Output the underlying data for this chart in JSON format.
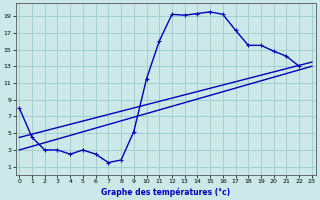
{
  "xlabel": "Graphe des températures (°c)",
  "bg_color": "#cce8e8",
  "grid_color": "#99cccc",
  "line_color": "#0000bb",
  "xlim": [
    -0.3,
    23.3
  ],
  "ylim": [
    0,
    20.5
  ],
  "xticks": [
    0,
    1,
    2,
    3,
    4,
    5,
    6,
    7,
    8,
    9,
    10,
    11,
    12,
    13,
    14,
    15,
    16,
    17,
    18,
    19,
    20,
    21,
    22,
    23
  ],
  "yticks": [
    1,
    3,
    5,
    7,
    9,
    11,
    13,
    15,
    17,
    19
  ],
  "line1": {
    "x": [
      0,
      1,
      2,
      3,
      4,
      5,
      6,
      7,
      8,
      9,
      10,
      11,
      12,
      13,
      14,
      15,
      16,
      17,
      18,
      19,
      20,
      21,
      22
    ],
    "y": [
      8,
      4.5,
      3,
      3,
      2.5,
      3,
      2.5,
      1.5,
      1.8,
      5.2,
      11.5,
      16,
      19.2,
      19.1,
      19.3,
      19.5,
      19.2,
      17.3,
      15.5,
      15.5,
      14.8,
      14.2,
      13.0
    ]
  },
  "line2": {
    "x": [
      0,
      23
    ],
    "y": [
      4.5,
      13.5
    ]
  },
  "line3": {
    "x": [
      0,
      23
    ],
    "y": [
      3.0,
      13.0
    ]
  },
  "linewidth": 1.0,
  "marker_size": 3.5
}
